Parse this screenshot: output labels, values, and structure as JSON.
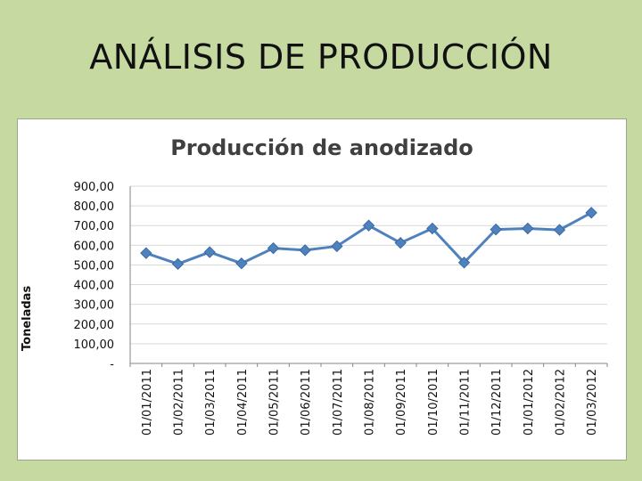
{
  "slide": {
    "title": "ANÁLISIS DE PRODUCCIÓN"
  },
  "chart_data": {
    "type": "line",
    "title": "Producción de anodizado",
    "xlabel": "",
    "ylabel": "Toneladas",
    "categories": [
      "01/01/2011",
      "01/02/2011",
      "01/03/2011",
      "01/04/2011",
      "01/05/2011",
      "01/06/2011",
      "01/07/2011",
      "01/08/2011",
      "01/09/2011",
      "01/10/2011",
      "01/11/2011",
      "01/12/2011",
      "01/01/2012",
      "01/02/2012",
      "01/03/2012"
    ],
    "series": [
      {
        "values": [
          560,
          505,
          565,
          508,
          585,
          575,
          595,
          700,
          612,
          685,
          512,
          680,
          685,
          678,
          765
        ]
      }
    ],
    "ylim": [
      0,
      900
    ],
    "yticks": [
      0,
      100,
      200,
      300,
      400,
      500,
      600,
      700,
      800,
      900
    ],
    "ytick_labels": [
      "-",
      "100,00",
      "200,00",
      "300,00",
      "400,00",
      "500,00",
      "600,00",
      "700,00",
      "800,00",
      "900,00"
    ],
    "grid": true,
    "legend": "none",
    "line_color": "#4f81bd",
    "grid_color": "#d9d9d9"
  }
}
